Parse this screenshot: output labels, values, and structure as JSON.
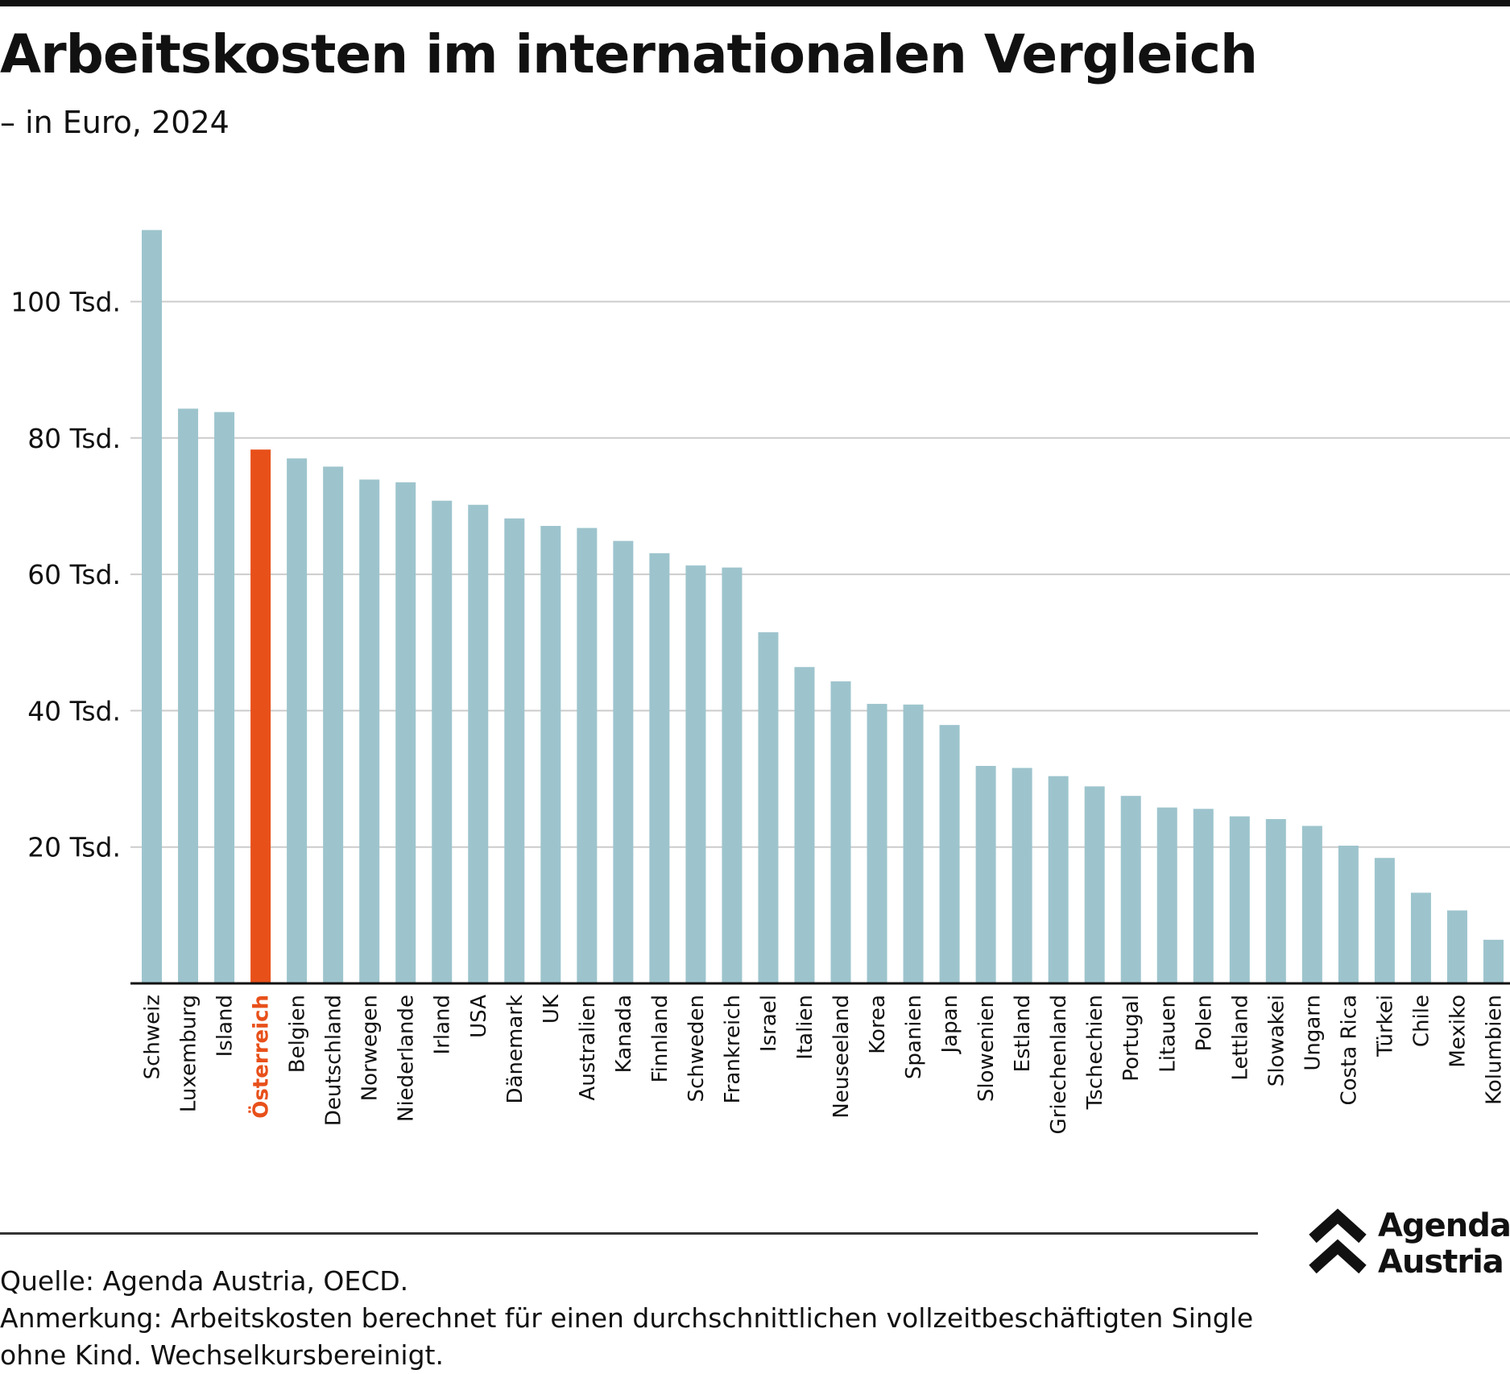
{
  "title": "Arbeitskosten im internationalen Vergleich",
  "subtitle": "– in Euro, 2024",
  "source": "Quelle: Agenda Austria, OECD.",
  "note": "Anmerkung: Arbeitskosten berechnet für einen durchschnittlichen vollzeitbeschäftigten Single ohne Kind. Wechselkursbereinigt.",
  "logo": {
    "line1": "Agenda",
    "line2": "Austria"
  },
  "colors": {
    "bar": "#9dc4cd",
    "highlight": "#e8501a",
    "grid": "#cccccc",
    "axis": "#111111"
  },
  "chart_data": {
    "type": "bar",
    "title": "Arbeitskosten im internationalen Vergleich",
    "subtitle": "– in Euro, 2024",
    "categories": [
      "Schweiz",
      "Luxemburg",
      "Island",
      "Österreich",
      "Belgien",
      "Deutschland",
      "Norwegen",
      "Niederlande",
      "Irland",
      "USA",
      "Dänemark",
      "UK",
      "Australien",
      "Kanada",
      "Finnland",
      "Schweden",
      "Frankreich",
      "Israel",
      "Italien",
      "Neuseeland",
      "Korea",
      "Spanien",
      "Japan",
      "Slowenien",
      "Estland",
      "Griechenland",
      "Tschechien",
      "Portugal",
      "Litauen",
      "Polen",
      "Lettland",
      "Slowakei",
      "Ungarn",
      "Costa Rica",
      "Türkei",
      "Chile",
      "Mexiko",
      "Kolumbien"
    ],
    "values": [
      110.5,
      84.3,
      83.8,
      78.3,
      77.0,
      75.8,
      73.9,
      73.5,
      70.8,
      70.2,
      68.2,
      67.1,
      66.8,
      64.9,
      63.1,
      61.3,
      61.0,
      51.5,
      46.4,
      44.3,
      41.0,
      40.9,
      37.9,
      31.9,
      31.6,
      30.4,
      28.9,
      27.5,
      25.8,
      25.6,
      24.5,
      24.1,
      23.1,
      20.2,
      18.4,
      13.3,
      10.7,
      6.4
    ],
    "highlight": "Österreich",
    "yticks": [
      20,
      40,
      60,
      80,
      100
    ],
    "ytick_labels": [
      "20 Tsd.",
      "40 Tsd.",
      "60 Tsd.",
      "80 Tsd.",
      "100 Tsd."
    ],
    "ylim": [
      0,
      115
    ],
    "grid": true,
    "xlabel": "",
    "ylabel": ""
  }
}
